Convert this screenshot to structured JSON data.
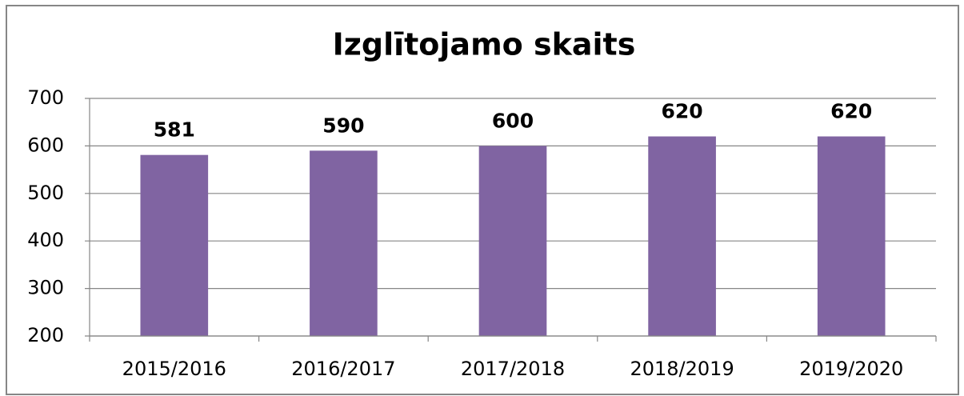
{
  "chart_data": {
    "type": "bar",
    "title": "Izglītojamo skaits",
    "categories": [
      "2015/2016",
      "2016/2017",
      "2017/2018",
      "2018/2019",
      "2019/2020"
    ],
    "values": [
      581,
      590,
      600,
      620,
      620
    ],
    "color": "#8064a2",
    "ylim": [
      200,
      700
    ],
    "yticks": [
      200,
      300,
      400,
      500,
      600,
      700
    ],
    "grid": true
  }
}
